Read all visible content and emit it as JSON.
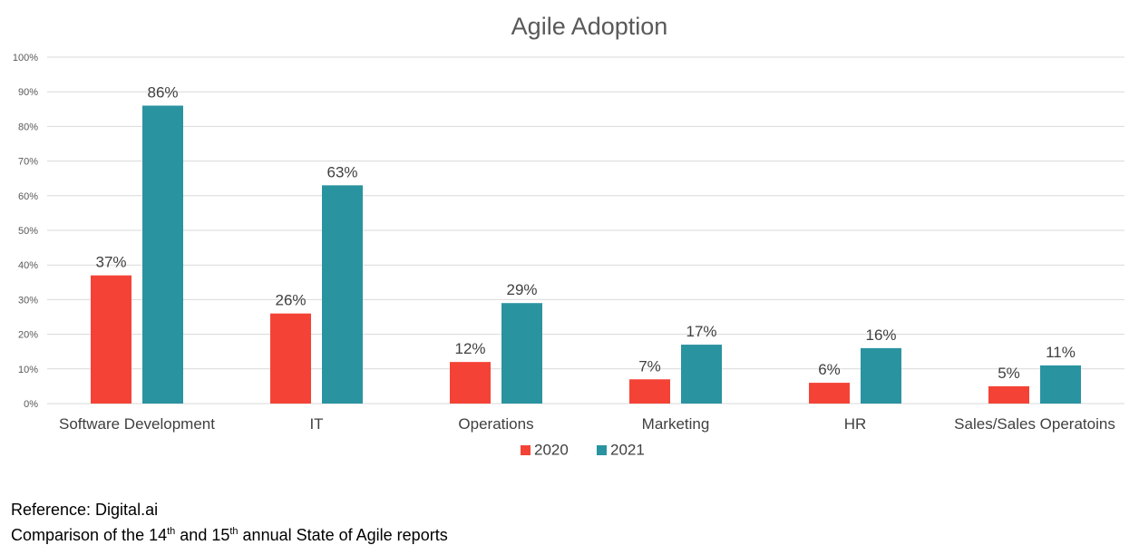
{
  "chart_data": {
    "type": "bar",
    "title": "Agile Adoption",
    "categories": [
      "Software Development",
      "IT",
      "Operations",
      "Marketing",
      "HR",
      "Sales/Sales Operatoins"
    ],
    "series": [
      {
        "name": "2020",
        "values": [
          37,
          26,
          12,
          7,
          6,
          5
        ],
        "labels": [
          "37%",
          "26%",
          "12%",
          "7%",
          "6%",
          "5%"
        ],
        "color": "#f44336"
      },
      {
        "name": "2021",
        "values": [
          86,
          63,
          29,
          17,
          16,
          11
        ],
        "labels": [
          "86%",
          "63%",
          "29%",
          "17%",
          "16%",
          "11%"
        ],
        "color": "#2a93a0"
      }
    ],
    "ylim": [
      0,
      100
    ],
    "yticks": [
      0,
      10,
      20,
      30,
      40,
      50,
      60,
      70,
      80,
      90,
      100
    ],
    "ytick_labels": [
      "0%",
      "10%",
      "20%",
      "30%",
      "40%",
      "50%",
      "60%",
      "70%",
      "80%",
      "90%",
      "100%"
    ],
    "grid": true,
    "legend": "bottom-center"
  },
  "footer": {
    "reference": "Reference:  Digital.ai",
    "comparison_a": "Comparison of the 14",
    "sup_a": "th",
    "comparison_b": " and 15",
    "sup_b": "th",
    "comparison_c": " annual State of Agile reports"
  }
}
